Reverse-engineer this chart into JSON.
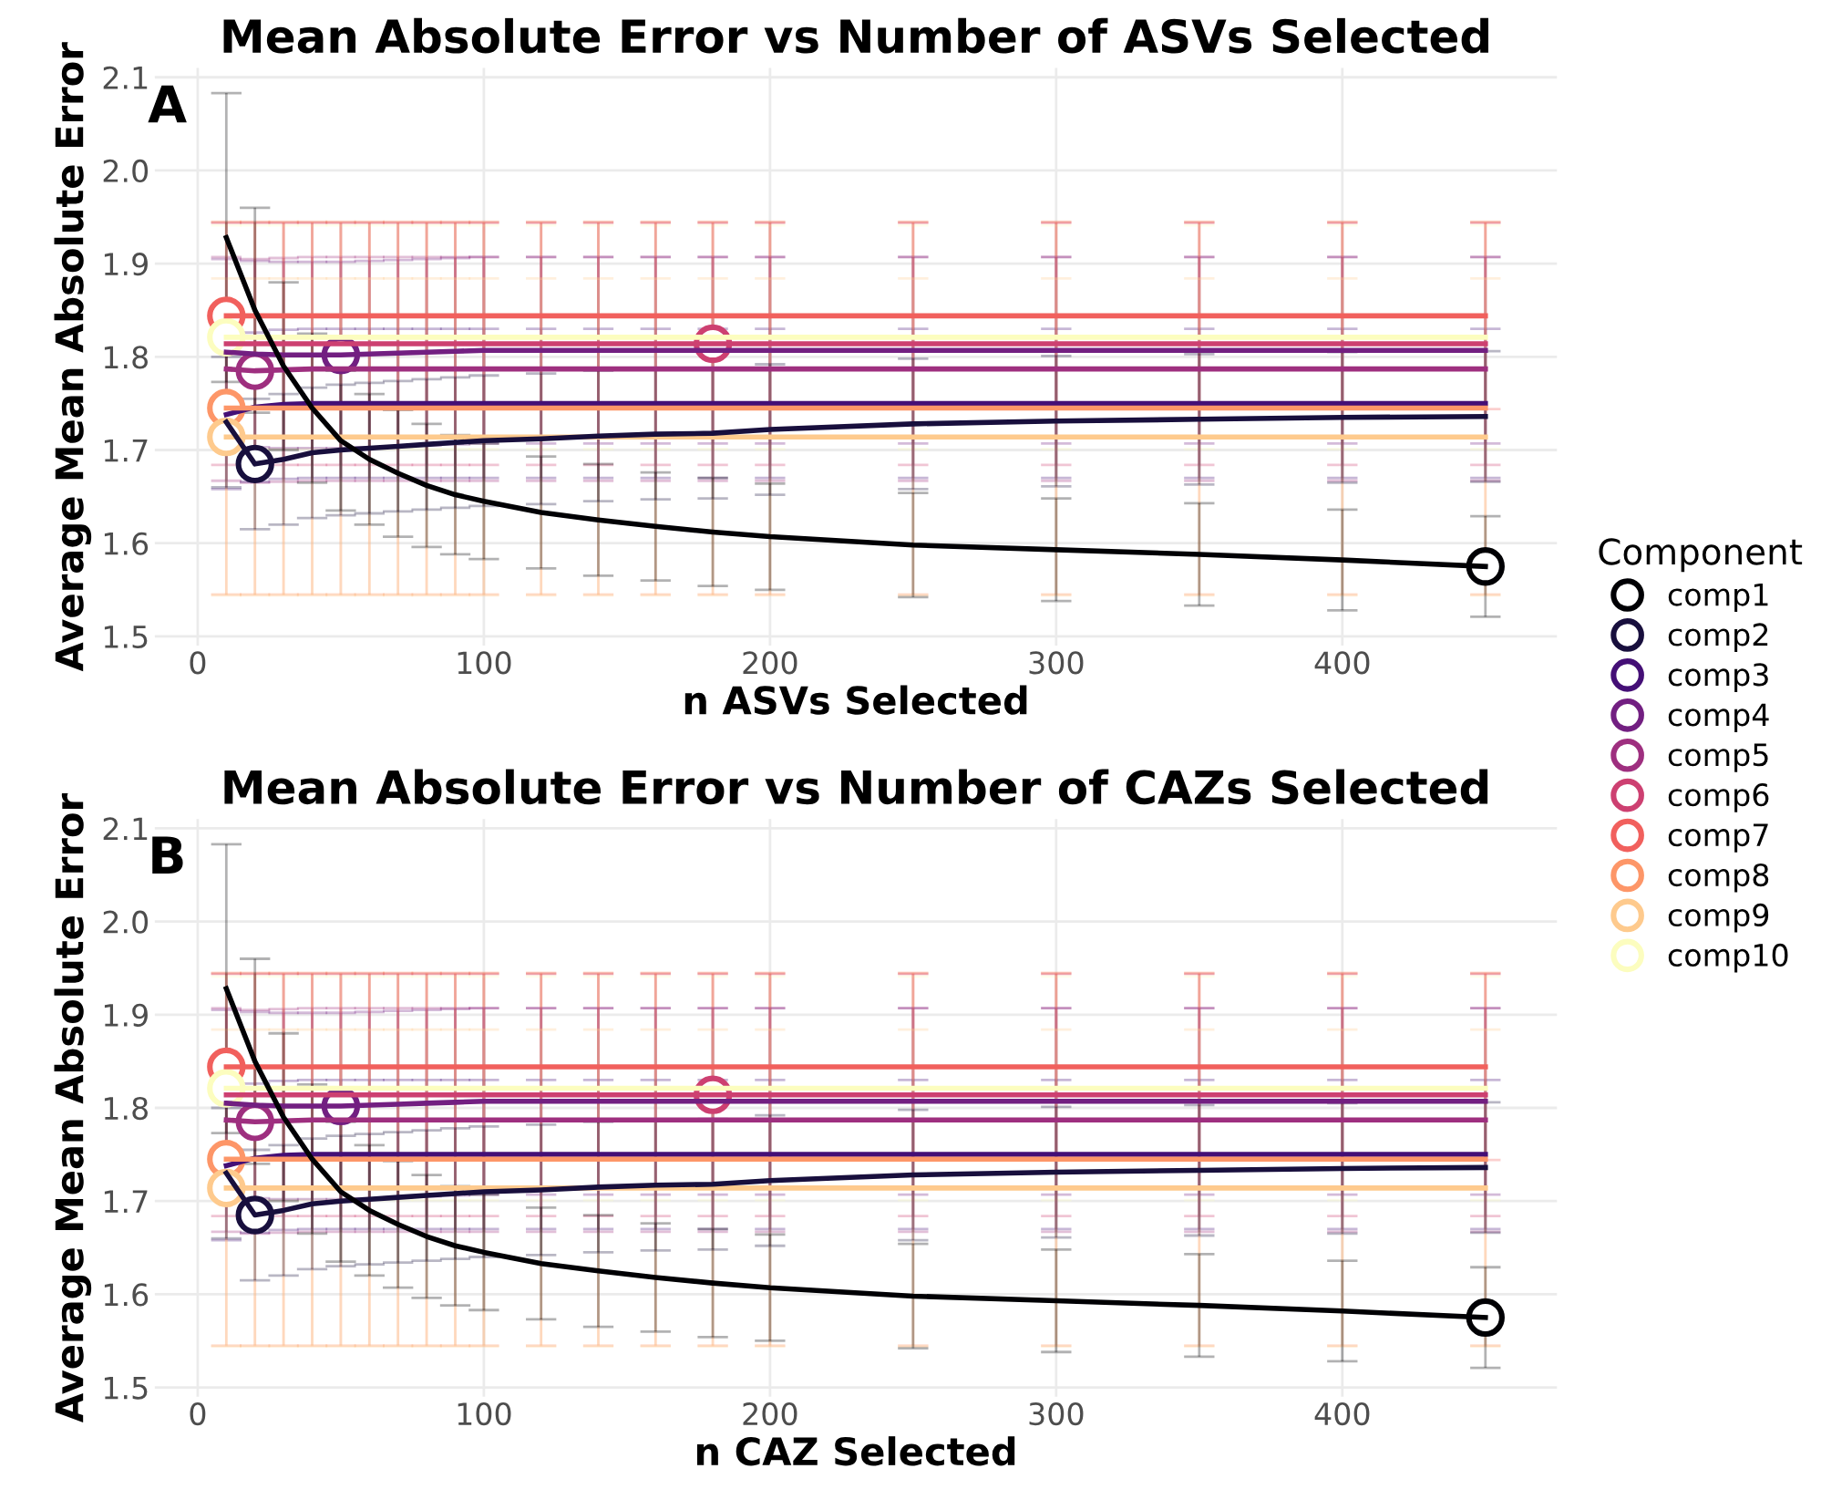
{
  "chart_data": [
    {
      "type": "line",
      "title": "Mean Absolute Error vs Number of ASVs Selected",
      "xlabel": "n ASVs Selected",
      "ylabel": "Average Mean Absolute Error",
      "legend_title": "Component",
      "legend": "right",
      "grid": true,
      "annotations": [
        "A"
      ],
      "xlim": [
        -15,
        475
      ],
      "xticks": [
        0,
        100,
        200,
        300,
        400
      ],
      "ylim": [
        1.49,
        2.11
      ],
      "yticks": [
        1.5,
        1.6,
        1.7,
        1.8,
        1.9,
        {
          "value": 2.0,
          "label": "2.0"
        },
        2.1
      ],
      "x": [
        10,
        20,
        30,
        40,
        50,
        60,
        70,
        80,
        90,
        100,
        120,
        140,
        160,
        180,
        200,
        250,
        300,
        350,
        400,
        450
      ],
      "series": [
        {
          "color": "#f1605d",
          "values": [
            1.844,
            1.844,
            1.844,
            1.844,
            1.844,
            1.844,
            1.844,
            1.844,
            1.844,
            1.844,
            1.844,
            1.844,
            1.844,
            1.844,
            1.844,
            1.844,
            1.844,
            1.844,
            1.844,
            1.844
          ],
          "errors": [
            0.1,
            0.1,
            0.1,
            0.1,
            0.1,
            0.1,
            0.1,
            0.1,
            0.1,
            0.1,
            0.1,
            0.1,
            0.1,
            0.1,
            0.1,
            0.1,
            0.1,
            0.1,
            0.1,
            0.1
          ]
        },
        {
          "color": "#fcfdbf",
          "values": [
            1.821,
            1.821,
            1.821,
            1.821,
            1.821,
            1.821,
            1.821,
            1.821,
            1.821,
            1.821,
            1.821,
            1.821,
            1.821,
            1.821,
            1.821,
            1.821,
            1.821,
            1.821,
            1.821,
            1.821
          ],
          "errors": [
            0.12,
            0.12,
            0.12,
            0.12,
            0.12,
            0.12,
            0.12,
            0.12,
            0.12,
            0.12,
            0.12,
            0.12,
            0.12,
            0.12,
            0.12,
            0.12,
            0.12,
            0.12,
            0.12,
            0.12
          ]
        },
        {
          "color": "#cd4071",
          "values": [
            1.814,
            1.814,
            1.814,
            1.814,
            1.814,
            1.814,
            1.814,
            1.814,
            1.814,
            1.814,
            1.814,
            1.814,
            1.814,
            1.814,
            1.814,
            1.814,
            1.814,
            1.814,
            1.814,
            1.814
          ],
          "errors": [
            0.13,
            0.13,
            0.13,
            0.13,
            0.13,
            0.13,
            0.13,
            0.13,
            0.13,
            0.13,
            0.13,
            0.13,
            0.13,
            0.13,
            0.13,
            0.13,
            0.13,
            0.13,
            0.13,
            0.13
          ]
        },
        {
          "color": "#721f81",
          "values": [
            1.805,
            1.803,
            1.802,
            1.802,
            1.802,
            1.803,
            1.804,
            1.805,
            1.806,
            1.807,
            1.807,
            1.807,
            1.807,
            1.807,
            1.807,
            1.807,
            1.807,
            1.807,
            1.807,
            1.807
          ],
          "errors": [
            0.1,
            0.1,
            0.1,
            0.1,
            0.1,
            0.1,
            0.1,
            0.1,
            0.1,
            0.1,
            0.1,
            0.1,
            0.1,
            0.1,
            0.1,
            0.1,
            0.1,
            0.1,
            0.1,
            0.1
          ]
        },
        {
          "color": "#9e2f7f",
          "values": [
            1.787,
            1.785,
            1.786,
            1.787,
            1.787,
            1.787,
            1.787,
            1.787,
            1.787,
            1.787,
            1.787,
            1.787,
            1.787,
            1.787,
            1.787,
            1.787,
            1.787,
            1.787,
            1.787,
            1.787
          ],
          "errors": [
            0.12,
            0.12,
            0.12,
            0.12,
            0.12,
            0.12,
            0.12,
            0.12,
            0.12,
            0.12,
            0.12,
            0.12,
            0.12,
            0.12,
            0.12,
            0.12,
            0.12,
            0.12,
            0.12,
            0.12
          ]
        },
        {
          "color": "#440f76",
          "values": [
            1.738,
            1.746,
            1.749,
            1.75,
            1.75,
            1.75,
            1.75,
            1.75,
            1.75,
            1.75,
            1.75,
            1.75,
            1.75,
            1.75,
            1.75,
            1.75,
            1.75,
            1.75,
            1.75,
            1.75
          ],
          "errors": [
            0.08,
            0.08,
            0.08,
            0.08,
            0.08,
            0.08,
            0.08,
            0.08,
            0.08,
            0.08,
            0.08,
            0.08,
            0.08,
            0.08,
            0.08,
            0.08,
            0.08,
            0.08,
            0.08,
            0.08
          ]
        },
        {
          "color": "#fd9668",
          "values": [
            1.745,
            1.745,
            1.745,
            1.745,
            1.745,
            1.745,
            1.745,
            1.745,
            1.745,
            1.745,
            1.745,
            1.745,
            1.745,
            1.745,
            1.745,
            1.745,
            1.745,
            1.745,
            1.745,
            1.745
          ],
          "errors": [
            0.2,
            0.2,
            0.2,
            0.2,
            0.2,
            0.2,
            0.2,
            0.2,
            0.2,
            0.2,
            0.2,
            0.2,
            0.2,
            0.2,
            0.2,
            0.2,
            0.2,
            0.2,
            0.2,
            0.2
          ]
        },
        {
          "color": "#feca8d",
          "values": [
            1.714,
            1.714,
            1.714,
            1.714,
            1.714,
            1.714,
            1.714,
            1.714,
            1.714,
            1.714,
            1.714,
            1.714,
            1.714,
            1.714,
            1.714,
            1.714,
            1.714,
            1.714,
            1.714,
            1.714
          ],
          "errors": [
            0.17,
            0.17,
            0.17,
            0.17,
            0.17,
            0.17,
            0.17,
            0.17,
            0.17,
            0.17,
            0.17,
            0.17,
            0.17,
            0.17,
            0.17,
            0.17,
            0.17,
            0.17,
            0.17,
            0.17
          ]
        },
        {
          "color": "#180f3d",
          "values": [
            1.73,
            1.685,
            1.69,
            1.697,
            1.7,
            1.702,
            1.704,
            1.706,
            1.708,
            1.71,
            1.712,
            1.715,
            1.717,
            1.718,
            1.722,
            1.728,
            1.731,
            1.733,
            1.735,
            1.736
          ],
          "errors": [
            0.07,
            0.07,
            0.07,
            0.07,
            0.07,
            0.07,
            0.07,
            0.07,
            0.07,
            0.07,
            0.07,
            0.07,
            0.07,
            0.07,
            0.07,
            0.07,
            0.07,
            0.07,
            0.07,
            0.07
          ]
        },
        {
          "color": "#000004",
          "values": [
            1.928,
            1.85,
            1.79,
            1.745,
            1.71,
            1.69,
            1.675,
            1.662,
            1.652,
            1.645,
            1.633,
            1.625,
            1.618,
            1.612,
            1.607,
            1.598,
            1.593,
            1.588,
            1.582,
            1.575
          ],
          "errors": [
            0.155,
            0.11,
            0.09,
            0.08,
            0.075,
            0.07,
            0.068,
            0.066,
            0.064,
            0.062,
            0.06,
            0.06,
            0.058,
            0.058,
            0.057,
            0.056,
            0.055,
            0.055,
            0.054,
            0.054
          ]
        },
        {
          "type": "scatter",
          "name": "comp1",
          "color": "#000004",
          "x": [
            450
          ],
          "values": [
            1.575
          ]
        },
        {
          "type": "scatter",
          "name": "comp2",
          "color": "#180f3d",
          "x": [
            20
          ],
          "values": [
            1.685
          ]
        },
        {
          "type": "scatter",
          "name": "comp3",
          "color": "#440f76",
          "x": [
            null
          ],
          "values": [
            null
          ]
        },
        {
          "type": "scatter",
          "name": "comp4",
          "color": "#721f81",
          "x": [
            50
          ],
          "values": [
            1.802
          ]
        },
        {
          "type": "scatter",
          "name": "comp5",
          "color": "#9e2f7f",
          "x": [
            20
          ],
          "values": [
            1.785
          ]
        },
        {
          "type": "scatter",
          "name": "comp6",
          "color": "#cd4071",
          "x": [
            180
          ],
          "values": [
            1.814
          ]
        },
        {
          "type": "scatter",
          "name": "comp7",
          "color": "#f1605d",
          "x": [
            10
          ],
          "values": [
            1.844
          ]
        },
        {
          "type": "scatter",
          "name": "comp8",
          "color": "#fd9668",
          "x": [
            10
          ],
          "values": [
            1.745
          ]
        },
        {
          "type": "scatter",
          "name": "comp9",
          "color": "#feca8d",
          "x": [
            10
          ],
          "values": [
            1.714
          ]
        },
        {
          "type": "scatter",
          "name": "comp10",
          "color": "#fcfdbf",
          "x": [
            10
          ],
          "values": [
            1.821
          ]
        }
      ]
    },
    {
      "type": "line",
      "title": "Mean Absolute Error vs Number of CAZs Selected",
      "xlabel": "n CAZ Selected",
      "ylabel": "Average Mean Absolute Error",
      "grid": true,
      "annotations": [
        "B"
      ],
      "xlim": [
        -15,
        475
      ],
      "xticks": [
        0,
        100,
        200,
        300,
        400
      ],
      "ylim": [
        1.49,
        2.11
      ],
      "yticks": [
        1.5,
        1.6,
        1.7,
        1.8,
        1.9,
        {
          "value": 2.0,
          "label": "2.0"
        },
        2.1
      ],
      "x": [
        10,
        20,
        30,
        40,
        50,
        60,
        70,
        80,
        90,
        100,
        120,
        140,
        160,
        180,
        200,
        250,
        300,
        350,
        400,
        450
      ],
      "series": [
        {
          "color": "#f1605d",
          "values": [
            1.844,
            1.844,
            1.844,
            1.844,
            1.844,
            1.844,
            1.844,
            1.844,
            1.844,
            1.844,
            1.844,
            1.844,
            1.844,
            1.844,
            1.844,
            1.844,
            1.844,
            1.844,
            1.844,
            1.844
          ],
          "errors": [
            0.1,
            0.1,
            0.1,
            0.1,
            0.1,
            0.1,
            0.1,
            0.1,
            0.1,
            0.1,
            0.1,
            0.1,
            0.1,
            0.1,
            0.1,
            0.1,
            0.1,
            0.1,
            0.1,
            0.1
          ]
        },
        {
          "color": "#fcfdbf",
          "values": [
            1.821,
            1.821,
            1.821,
            1.821,
            1.821,
            1.821,
            1.821,
            1.821,
            1.821,
            1.821,
            1.821,
            1.821,
            1.821,
            1.821,
            1.821,
            1.821,
            1.821,
            1.821,
            1.821,
            1.821
          ],
          "errors": [
            0.12,
            0.12,
            0.12,
            0.12,
            0.12,
            0.12,
            0.12,
            0.12,
            0.12,
            0.12,
            0.12,
            0.12,
            0.12,
            0.12,
            0.12,
            0.12,
            0.12,
            0.12,
            0.12,
            0.12
          ]
        },
        {
          "color": "#cd4071",
          "values": [
            1.814,
            1.814,
            1.814,
            1.814,
            1.814,
            1.814,
            1.814,
            1.814,
            1.814,
            1.814,
            1.814,
            1.814,
            1.814,
            1.814,
            1.814,
            1.814,
            1.814,
            1.814,
            1.814,
            1.814
          ],
          "errors": [
            0.13,
            0.13,
            0.13,
            0.13,
            0.13,
            0.13,
            0.13,
            0.13,
            0.13,
            0.13,
            0.13,
            0.13,
            0.13,
            0.13,
            0.13,
            0.13,
            0.13,
            0.13,
            0.13,
            0.13
          ]
        },
        {
          "color": "#721f81",
          "values": [
            1.805,
            1.803,
            1.802,
            1.802,
            1.802,
            1.803,
            1.804,
            1.805,
            1.806,
            1.807,
            1.807,
            1.807,
            1.807,
            1.807,
            1.807,
            1.807,
            1.807,
            1.807,
            1.807,
            1.807
          ],
          "errors": [
            0.1,
            0.1,
            0.1,
            0.1,
            0.1,
            0.1,
            0.1,
            0.1,
            0.1,
            0.1,
            0.1,
            0.1,
            0.1,
            0.1,
            0.1,
            0.1,
            0.1,
            0.1,
            0.1,
            0.1
          ]
        },
        {
          "color": "#9e2f7f",
          "values": [
            1.787,
            1.785,
            1.786,
            1.787,
            1.787,
            1.787,
            1.787,
            1.787,
            1.787,
            1.787,
            1.787,
            1.787,
            1.787,
            1.787,
            1.787,
            1.787,
            1.787,
            1.787,
            1.787,
            1.787
          ],
          "errors": [
            0.12,
            0.12,
            0.12,
            0.12,
            0.12,
            0.12,
            0.12,
            0.12,
            0.12,
            0.12,
            0.12,
            0.12,
            0.12,
            0.12,
            0.12,
            0.12,
            0.12,
            0.12,
            0.12,
            0.12
          ]
        },
        {
          "color": "#440f76",
          "values": [
            1.738,
            1.746,
            1.749,
            1.75,
            1.75,
            1.75,
            1.75,
            1.75,
            1.75,
            1.75,
            1.75,
            1.75,
            1.75,
            1.75,
            1.75,
            1.75,
            1.75,
            1.75,
            1.75,
            1.75
          ],
          "errors": [
            0.08,
            0.08,
            0.08,
            0.08,
            0.08,
            0.08,
            0.08,
            0.08,
            0.08,
            0.08,
            0.08,
            0.08,
            0.08,
            0.08,
            0.08,
            0.08,
            0.08,
            0.08,
            0.08,
            0.08
          ]
        },
        {
          "color": "#fd9668",
          "values": [
            1.745,
            1.745,
            1.745,
            1.745,
            1.745,
            1.745,
            1.745,
            1.745,
            1.745,
            1.745,
            1.745,
            1.745,
            1.745,
            1.745,
            1.745,
            1.745,
            1.745,
            1.745,
            1.745,
            1.745
          ],
          "errors": [
            0.2,
            0.2,
            0.2,
            0.2,
            0.2,
            0.2,
            0.2,
            0.2,
            0.2,
            0.2,
            0.2,
            0.2,
            0.2,
            0.2,
            0.2,
            0.2,
            0.2,
            0.2,
            0.2,
            0.2
          ]
        },
        {
          "color": "#feca8d",
          "values": [
            1.714,
            1.714,
            1.714,
            1.714,
            1.714,
            1.714,
            1.714,
            1.714,
            1.714,
            1.714,
            1.714,
            1.714,
            1.714,
            1.714,
            1.714,
            1.714,
            1.714,
            1.714,
            1.714,
            1.714
          ],
          "errors": [
            0.17,
            0.17,
            0.17,
            0.17,
            0.17,
            0.17,
            0.17,
            0.17,
            0.17,
            0.17,
            0.17,
            0.17,
            0.17,
            0.17,
            0.17,
            0.17,
            0.17,
            0.17,
            0.17,
            0.17
          ]
        },
        {
          "color": "#180f3d",
          "values": [
            1.73,
            1.685,
            1.69,
            1.697,
            1.7,
            1.702,
            1.704,
            1.706,
            1.708,
            1.71,
            1.712,
            1.715,
            1.717,
            1.718,
            1.722,
            1.728,
            1.731,
            1.733,
            1.735,
            1.736
          ],
          "errors": [
            0.07,
            0.07,
            0.07,
            0.07,
            0.07,
            0.07,
            0.07,
            0.07,
            0.07,
            0.07,
            0.07,
            0.07,
            0.07,
            0.07,
            0.07,
            0.07,
            0.07,
            0.07,
            0.07,
            0.07
          ]
        },
        {
          "color": "#000004",
          "values": [
            1.928,
            1.85,
            1.79,
            1.745,
            1.71,
            1.69,
            1.675,
            1.662,
            1.652,
            1.645,
            1.633,
            1.625,
            1.618,
            1.612,
            1.607,
            1.598,
            1.593,
            1.588,
            1.582,
            1.575
          ],
          "errors": [
            0.155,
            0.11,
            0.09,
            0.08,
            0.075,
            0.07,
            0.068,
            0.066,
            0.064,
            0.062,
            0.06,
            0.06,
            0.058,
            0.058,
            0.057,
            0.056,
            0.055,
            0.055,
            0.054,
            0.054
          ]
        },
        {
          "type": "scatter",
          "color": "#000004",
          "x": [
            450
          ],
          "values": [
            1.575
          ]
        },
        {
          "type": "scatter",
          "color": "#180f3d",
          "x": [
            20
          ],
          "values": [
            1.685
          ]
        },
        {
          "type": "scatter",
          "color": "#440f76",
          "x": [
            null
          ],
          "values": [
            null
          ]
        },
        {
          "type": "scatter",
          "color": "#721f81",
          "x": [
            50
          ],
          "values": [
            1.802
          ]
        },
        {
          "type": "scatter",
          "color": "#9e2f7f",
          "x": [
            20
          ],
          "values": [
            1.785
          ]
        },
        {
          "type": "scatter",
          "color": "#cd4071",
          "x": [
            180
          ],
          "values": [
            1.814
          ]
        },
        {
          "type": "scatter",
          "color": "#f1605d",
          "x": [
            10
          ],
          "values": [
            1.844
          ]
        },
        {
          "type": "scatter",
          "color": "#fd9668",
          "x": [
            10
          ],
          "values": [
            1.745
          ]
        },
        {
          "type": "scatter",
          "color": "#feca8d",
          "x": [
            10
          ],
          "values": [
            1.714
          ]
        },
        {
          "type": "scatter",
          "color": "#fcfdbf",
          "x": [
            10
          ],
          "values": [
            1.821
          ]
        }
      ]
    }
  ]
}
